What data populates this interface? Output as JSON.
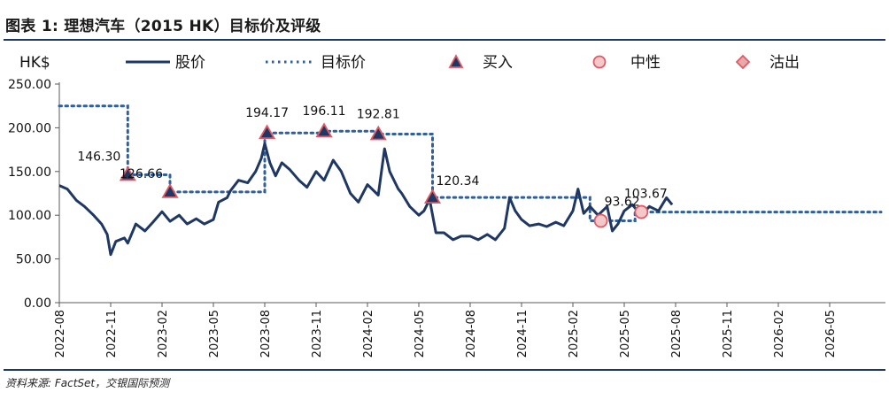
{
  "title": "图表 1: 理想汽车（2015 HK）目标价及评级",
  "source": "资料来源: FactSet，交银国际预测",
  "colors": {
    "price": "#1f3763",
    "target": "#2e5f9e",
    "buy_fill": "#1f3763",
    "buy_outline": "#e05a66",
    "neutral_fill": "#f4c7c9",
    "neutral_outline": "#e05a66",
    "sell_fill": "#e8a9ab",
    "sell_outline": "#e05a66",
    "axis": "#595959"
  },
  "chart_data": {
    "type": "line",
    "ylabel": "HK$",
    "ylim": [
      0,
      250
    ],
    "yticks": [
      "0.00",
      "50.00",
      "100.00",
      "150.00",
      "200.00",
      "250.00"
    ],
    "x_ticks": [
      "2022-08",
      "2022-11",
      "2023-02",
      "2023-05",
      "2023-08",
      "2023-11",
      "2024-02",
      "2024-05",
      "2024-08",
      "2024-11",
      "2025-02",
      "2025-05",
      "2025-08",
      "2025-11",
      "2026-02",
      "2026-05"
    ],
    "x_range": [
      "2022-08",
      "2026-08"
    ],
    "legend": {
      "position": "top",
      "entries": [
        {
          "key": "price",
          "label": "股价"
        },
        {
          "key": "target",
          "label": "目标价"
        },
        {
          "key": "buy",
          "label": "买入"
        },
        {
          "key": "neutral",
          "label": "中性"
        },
        {
          "key": "sell",
          "label": "沽出"
        }
      ]
    },
    "price_series": {
      "name": "股价",
      "points": [
        [
          "2022-08",
          134
        ],
        [
          "2022-08-15",
          130
        ],
        [
          "2022-09",
          117
        ],
        [
          "2022-09-15",
          110
        ],
        [
          "2022-10",
          100
        ],
        [
          "2022-10-15",
          90
        ],
        [
          "2022-10-25",
          78
        ],
        [
          "2022-11",
          55
        ],
        [
          "2022-11-10",
          70
        ],
        [
          "2022-11-25",
          74
        ],
        [
          "2022-12",
          68
        ],
        [
          "2022-12-15",
          90
        ],
        [
          "2023-01",
          82
        ],
        [
          "2023-01-15",
          92
        ],
        [
          "2023-02",
          104
        ],
        [
          "2023-02-15",
          93
        ],
        [
          "2023-03",
          100
        ],
        [
          "2023-03-15",
          90
        ],
        [
          "2023-04",
          96
        ],
        [
          "2023-04-15",
          90
        ],
        [
          "2023-05",
          95
        ],
        [
          "2023-05-10",
          115
        ],
        [
          "2023-05-25",
          120
        ],
        [
          "2023-06",
          128
        ],
        [
          "2023-06-15",
          140
        ],
        [
          "2023-07",
          137
        ],
        [
          "2023-07-15",
          150
        ],
        [
          "2023-07-25",
          165
        ],
        [
          "2023-08-01",
          182
        ],
        [
          "2023-08-10",
          160
        ],
        [
          "2023-08-20",
          145
        ],
        [
          "2023-09",
          160
        ],
        [
          "2023-09-15",
          152
        ],
        [
          "2023-10",
          140
        ],
        [
          "2023-10-15",
          132
        ],
        [
          "2023-11",
          150
        ],
        [
          "2023-11-15",
          140
        ],
        [
          "2023-12",
          163
        ],
        [
          "2023-12-15",
          150
        ],
        [
          "2024-01",
          125
        ],
        [
          "2024-01-15",
          115
        ],
        [
          "2024-02",
          135
        ],
        [
          "2024-02-20",
          123
        ],
        [
          "2024-03-01",
          176
        ],
        [
          "2024-03-10",
          150
        ],
        [
          "2024-03-25",
          130
        ],
        [
          "2024-04",
          125
        ],
        [
          "2024-04-15",
          110
        ],
        [
          "2024-05",
          100
        ],
        [
          "2024-05-10",
          105
        ],
        [
          "2024-05-20",
          118
        ],
        [
          "2024-06",
          80
        ],
        [
          "2024-06-15",
          80
        ],
        [
          "2024-07",
          72
        ],
        [
          "2024-07-15",
          76
        ],
        [
          "2024-08",
          76
        ],
        [
          "2024-08-15",
          72
        ],
        [
          "2024-09",
          78
        ],
        [
          "2024-09-15",
          72
        ],
        [
          "2024-10",
          85
        ],
        [
          "2024-10-10",
          120
        ],
        [
          "2024-10-20",
          105
        ],
        [
          "2024-11",
          95
        ],
        [
          "2024-11-15",
          88
        ],
        [
          "2024-12",
          90
        ],
        [
          "2024-12-15",
          87
        ],
        [
          "2025-01",
          92
        ],
        [
          "2025-01-15",
          88
        ],
        [
          "2025-02",
          105
        ],
        [
          "2025-02-10",
          130
        ],
        [
          "2025-02-20",
          102
        ],
        [
          "2025-03",
          110
        ],
        [
          "2025-03-15",
          100
        ],
        [
          "2025-04",
          110
        ],
        [
          "2025-04-10",
          82
        ],
        [
          "2025-04-20",
          90
        ],
        [
          "2025-05",
          105
        ],
        [
          "2025-05-15",
          112
        ],
        [
          "2025-06",
          100
        ],
        [
          "2025-06-15",
          110
        ],
        [
          "2025-07",
          105
        ],
        [
          "2025-07-15",
          120
        ],
        [
          "2025-07-25",
          112
        ]
      ]
    },
    "target_series": {
      "name": "目标价",
      "points": [
        [
          "2022-08",
          225
        ],
        [
          "2022-12-01",
          225
        ],
        [
          "2022-12-01",
          146.3
        ],
        [
          "2023-02-15",
          146.3
        ],
        [
          "2023-02-15",
          126.66
        ],
        [
          "2023-08-01",
          126.66
        ],
        [
          "2023-08-01",
          194.17
        ],
        [
          "2023-11-15",
          194.17
        ],
        [
          "2023-11-15",
          196.11
        ],
        [
          "2024-02-20",
          196.11
        ],
        [
          "2024-02-20",
          192.81
        ],
        [
          "2024-05-25",
          192.81
        ],
        [
          "2024-05-25",
          120.34
        ],
        [
          "2025-03-01",
          120.34
        ],
        [
          "2025-03-01",
          93.62
        ],
        [
          "2025-05-20",
          93.62
        ],
        [
          "2025-05-20",
          103.67
        ],
        [
          "2026-08",
          103.67
        ]
      ]
    },
    "ratings": [
      {
        "date": "2022-12-01",
        "value": 146.3,
        "rating": "buy",
        "label": "146.30"
      },
      {
        "date": "2023-02-15",
        "value": 126.66,
        "rating": "buy",
        "label": "126.66"
      },
      {
        "date": "2023-08-05",
        "value": 194.17,
        "rating": "buy",
        "label": "194.17"
      },
      {
        "date": "2023-11-15",
        "value": 196.11,
        "rating": "buy",
        "label": "196.11"
      },
      {
        "date": "2024-02-20",
        "value": 192.81,
        "rating": "buy",
        "label": "192.81"
      },
      {
        "date": "2024-05-25",
        "value": 120.34,
        "rating": "buy",
        "label": "120.34"
      },
      {
        "date": "2025-03-20",
        "value": 93.62,
        "rating": "neutral",
        "label": "93.62"
      },
      {
        "date": "2025-06-01",
        "value": 103.67,
        "rating": "neutral",
        "label": "103.67"
      }
    ]
  }
}
